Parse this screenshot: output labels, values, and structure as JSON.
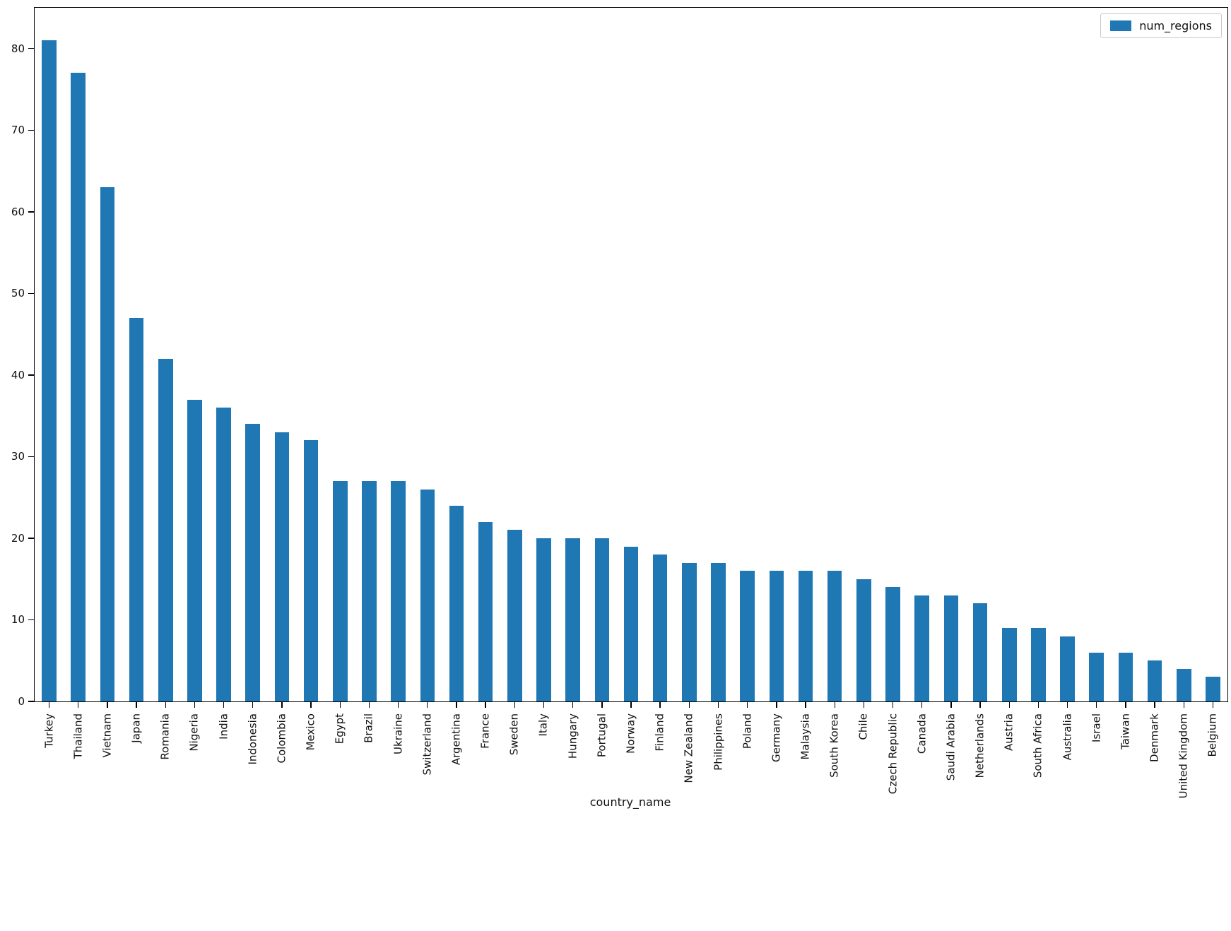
{
  "chart_data": {
    "type": "bar",
    "title": "",
    "xlabel": "country_name",
    "ylabel": "",
    "legend_position": "upper right",
    "grid": false,
    "bar_color": "#1f77b4",
    "ylim": [
      0,
      85
    ],
    "yticks": [
      0,
      10,
      20,
      30,
      40,
      50,
      60,
      70,
      80
    ],
    "categories": [
      "Turkey",
      "Thailand",
      "Vietnam",
      "Japan",
      "Romania",
      "Nigeria",
      "India",
      "Indonesia",
      "Colombia",
      "Mexico",
      "Egypt",
      "Brazil",
      "Ukraine",
      "Switzerland",
      "Argentina",
      "France",
      "Sweden",
      "Italy",
      "Hungary",
      "Portugal",
      "Norway",
      "Finland",
      "New Zealand",
      "Philippines",
      "Poland",
      "Germany",
      "Malaysia",
      "South Korea",
      "Chile",
      "Czech Republic",
      "Canada",
      "Saudi Arabia",
      "Netherlands",
      "Austria",
      "South Africa",
      "Australia",
      "Israel",
      "Taiwan",
      "Denmark",
      "United Kingdom",
      "Belgium"
    ],
    "series": [
      {
        "name": "num_regions",
        "values": [
          81,
          77,
          63,
          47,
          42,
          37,
          36,
          34,
          33,
          32,
          27,
          27,
          27,
          26,
          24,
          22,
          21,
          20,
          20,
          20,
          19,
          18,
          17,
          17,
          16,
          16,
          16,
          16,
          15,
          14,
          13,
          13,
          12,
          9,
          9,
          8,
          6,
          6,
          5,
          4,
          3
        ]
      }
    ]
  }
}
